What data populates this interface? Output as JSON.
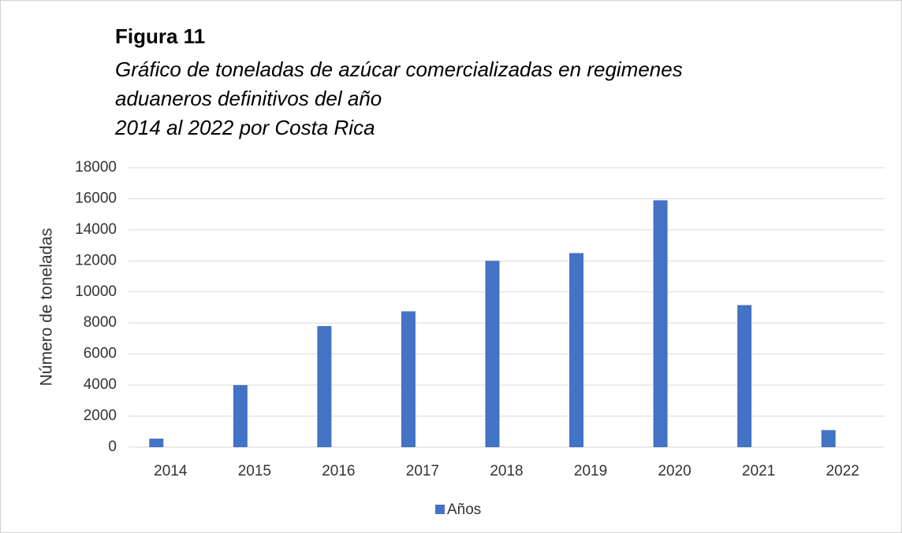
{
  "chart_data": {
    "type": "bar",
    "title": "Figura 11",
    "subtitle": [
      "Gráfico de toneladas de azúcar comercializadas en regimenes",
      "aduaneros definitivos del año",
      "2014 al 2022 por Costa Rica"
    ],
    "y_label": "Número de toneladas",
    "categories": [
      "2014",
      "2015",
      "2016",
      "2017",
      "2018",
      "2019",
      "2020",
      "2021",
      "2022"
    ],
    "series": [
      {
        "name": "Años",
        "color": "#4472c4",
        "values": [
          550,
          4000,
          7800,
          8750,
          12000,
          12500,
          15900,
          9150,
          1100
        ]
      }
    ],
    "ylim": [
      0,
      18000
    ],
    "yticks": [
      0,
      2000,
      4000,
      6000,
      8000,
      10000,
      12000,
      14000,
      16000,
      18000
    ],
    "grid": true,
    "legend": "bottom"
  }
}
